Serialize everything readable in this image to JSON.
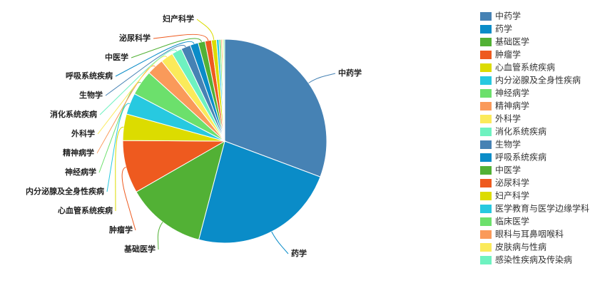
{
  "chart_data": {
    "type": "pie",
    "categories": [
      "中药学",
      "药学",
      "基础医学",
      "肿瘤学",
      "心血管系统疾病",
      "内分泌腺及全身性疾病",
      "神经病学",
      "精神病学",
      "外科学",
      "消化系统疾病",
      "生物学",
      "呼吸系统疾病",
      "中医学",
      "泌尿科学",
      "妇产科学",
      "医学教育与医学边缘学科",
      "临床医学",
      "眼科与耳鼻咽喉科",
      "皮肤病与性病",
      "感染性疾病及传染病"
    ],
    "values": [
      30.7,
      23.4,
      12.6,
      8.4,
      4.2,
      3.4,
      4.0,
      2.7,
      2.0,
      1.6,
      1.5,
      1.3,
      1.1,
      1.0,
      0.8,
      0.4,
      0.3,
      0.2,
      0.2,
      0.2
    ],
    "colors": [
      "#4682b4",
      "#0a8cc8",
      "#52b135",
      "#ee5a1f",
      "#dcdc00",
      "#27c9e0",
      "#6ce06c",
      "#fa9a5a",
      "#fbea5a",
      "#6ef2c0",
      "#4682b4",
      "#0a8cc8",
      "#52b135",
      "#ee5a1f",
      "#dcdc00",
      "#27c9e0",
      "#6ce06c",
      "#fa9a5a",
      "#fbea5a",
      "#6ef2c0"
    ],
    "legend": "right"
  }
}
